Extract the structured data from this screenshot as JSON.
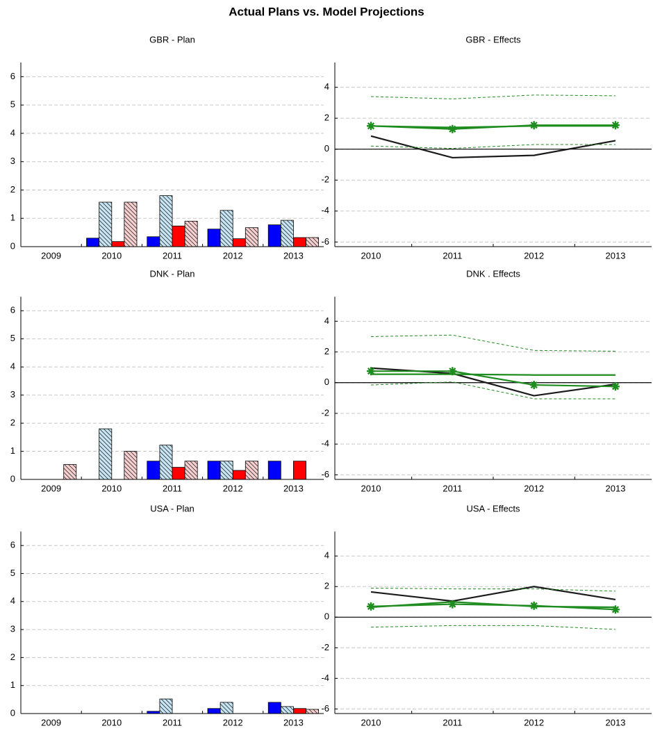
{
  "title": "Actual Plans vs. Model Projections",
  "chart_data": [
    {
      "type": "bar",
      "title": "GBR - Plan",
      "categories": [
        "2009",
        "2010",
        "2011",
        "2012",
        "2013"
      ],
      "series": [
        {
          "color": "#0000ff",
          "hatch": false,
          "values": [
            null,
            0.3,
            0.35,
            0.62,
            0.77
          ]
        },
        {
          "color": "#c6e6f5",
          "hatch": true,
          "values": [
            null,
            1.57,
            1.8,
            1.28,
            0.93
          ]
        },
        {
          "color": "#ff0000",
          "hatch": false,
          "values": [
            null,
            0.18,
            0.73,
            0.28,
            0.32
          ]
        },
        {
          "color": "#f7cfcf",
          "hatch": true,
          "values": [
            null,
            1.57,
            0.9,
            0.67,
            0.32
          ]
        }
      ],
      "ylim": [
        0,
        6.5
      ],
      "yticks": [
        0,
        1,
        2,
        3,
        4,
        5,
        6
      ],
      "grid": true
    },
    {
      "type": "line",
      "title": "GBR - Effects",
      "categories": [
        "2010",
        "2011",
        "2012",
        "2013"
      ],
      "series": [
        {
          "color": "#1a1a1a",
          "style": "solid",
          "values": [
            0.85,
            -0.55,
            -0.4,
            0.55
          ]
        },
        {
          "color": "#1e8c1e",
          "style": "solid",
          "marker": "star",
          "values": [
            1.5,
            1.3,
            1.55,
            1.55
          ]
        },
        {
          "color": "#1e8c1e",
          "style": "solid",
          "values": [
            1.5,
            1.4,
            1.5,
            1.5
          ]
        },
        {
          "color": "#1e8c1e",
          "style": "dashed",
          "values": [
            3.4,
            3.25,
            3.5,
            3.45
          ]
        },
        {
          "color": "#1e8c1e",
          "style": "dashed",
          "values": [
            0.2,
            0.05,
            0.3,
            0.3
          ]
        }
      ],
      "ylim": [
        -6.3,
        5.6
      ],
      "yticks": [
        -6,
        -4,
        -2,
        0,
        2,
        4
      ],
      "grid": true,
      "hline": 0
    },
    {
      "type": "bar",
      "title": "DNK - Plan",
      "categories": [
        "2009",
        "2010",
        "2011",
        "2012",
        "2013"
      ],
      "series": [
        {
          "color": "#0000ff",
          "hatch": false,
          "values": [
            null,
            null,
            0.65,
            0.65,
            0.65
          ]
        },
        {
          "color": "#c6e6f5",
          "hatch": true,
          "values": [
            null,
            1.8,
            1.22,
            0.65,
            null
          ]
        },
        {
          "color": "#ff0000",
          "hatch": false,
          "values": [
            null,
            null,
            0.43,
            0.32,
            0.65
          ]
        },
        {
          "color": "#f7cfcf",
          "hatch": true,
          "values": [
            0.53,
            1.0,
            0.65,
            0.65,
            null
          ]
        }
      ],
      "ylim": [
        0,
        6.5
      ],
      "yticks": [
        0,
        1,
        2,
        3,
        4,
        5,
        6
      ],
      "grid": true
    },
    {
      "type": "line",
      "title": "DNK . Effects",
      "categories": [
        "2010",
        "2011",
        "2012",
        "2013"
      ],
      "series": [
        {
          "color": "#1a1a1a",
          "style": "solid",
          "values": [
            0.95,
            0.6,
            -0.85,
            -0.1
          ]
        },
        {
          "color": "#1e8c1e",
          "style": "solid",
          "marker": "star",
          "values": [
            0.75,
            0.75,
            -0.15,
            -0.25
          ]
        },
        {
          "color": "#1e8c1e",
          "style": "solid",
          "values": [
            0.55,
            0.55,
            0.5,
            0.5
          ]
        },
        {
          "color": "#1e8c1e",
          "style": "dashed",
          "values": [
            3.0,
            3.1,
            2.1,
            2.05
          ]
        },
        {
          "color": "#1e8c1e",
          "style": "dashed",
          "values": [
            -0.15,
            0.05,
            -1.05,
            -1.05
          ]
        }
      ],
      "ylim": [
        -6.3,
        5.6
      ],
      "yticks": [
        -6,
        -4,
        -2,
        0,
        2,
        4
      ],
      "grid": true,
      "hline": 0
    },
    {
      "type": "bar",
      "title": "USA - Plan",
      "categories": [
        "2009",
        "2010",
        "2011",
        "2012",
        "2013"
      ],
      "series": [
        {
          "color": "#0000ff",
          "hatch": false,
          "values": [
            null,
            null,
            0.08,
            0.18,
            0.4
          ]
        },
        {
          "color": "#c6e6f5",
          "hatch": true,
          "values": [
            null,
            null,
            0.52,
            0.4,
            0.25
          ]
        },
        {
          "color": "#ff0000",
          "hatch": false,
          "values": [
            null,
            null,
            null,
            null,
            0.18
          ]
        },
        {
          "color": "#f7cfcf",
          "hatch": true,
          "values": [
            null,
            null,
            null,
            null,
            0.15
          ]
        }
      ],
      "ylim": [
        0,
        6.5
      ],
      "yticks": [
        0,
        1,
        2,
        3,
        4,
        5,
        6
      ],
      "grid": true
    },
    {
      "type": "line",
      "title": "USA - Effects",
      "categories": [
        "2010",
        "2011",
        "2012",
        "2013"
      ],
      "series": [
        {
          "color": "#1a1a1a",
          "style": "solid",
          "values": [
            1.65,
            1.05,
            2.0,
            1.15
          ]
        },
        {
          "color": "#1e8c1e",
          "style": "solid",
          "marker": "star",
          "values": [
            0.7,
            0.85,
            0.75,
            0.5
          ]
        },
        {
          "color": "#1e8c1e",
          "style": "solid",
          "values": [
            0.65,
            1.0,
            0.7,
            0.65
          ]
        },
        {
          "color": "#1e8c1e",
          "style": "dashed",
          "values": [
            1.9,
            1.85,
            1.85,
            1.7
          ]
        },
        {
          "color": "#1e8c1e",
          "style": "dashed",
          "values": [
            -0.65,
            -0.55,
            -0.55,
            -0.8
          ]
        }
      ],
      "ylim": [
        -6.3,
        5.6
      ],
      "yticks": [
        -6,
        -4,
        -2,
        0,
        2,
        4
      ],
      "grid": true,
      "hline": 0
    }
  ]
}
